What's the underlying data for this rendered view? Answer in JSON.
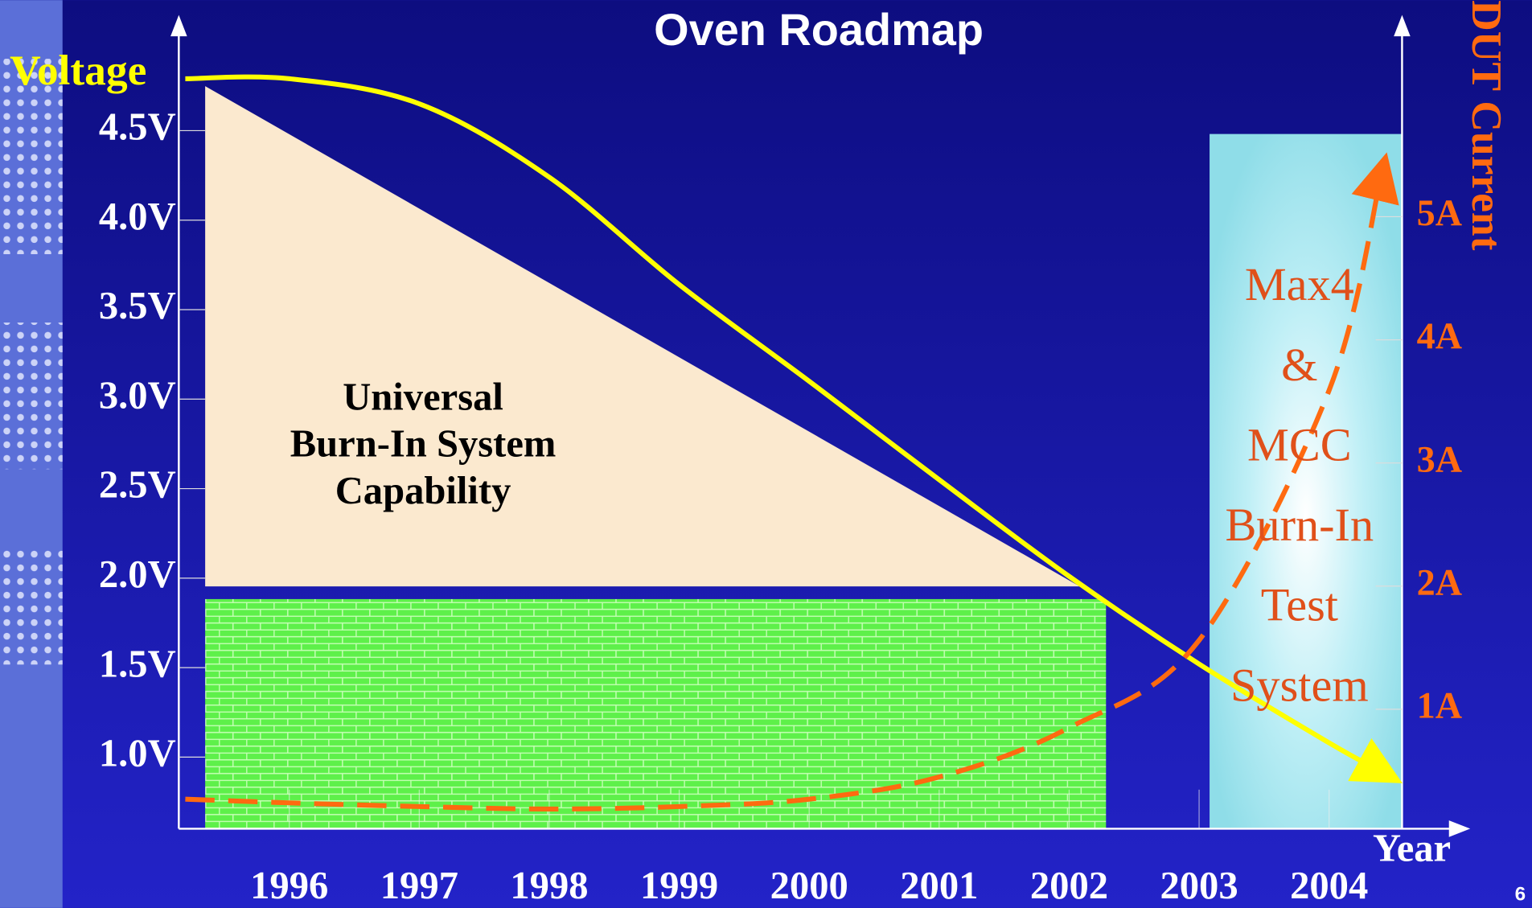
{
  "chart_data": {
    "type": "line",
    "title": "Oven Roadmap",
    "y_label": "Voltage",
    "y2_label": "DUT Current",
    "x_label": "Year",
    "x": [
      1995.2,
      1996,
      1997,
      1998,
      1999,
      2000,
      2001,
      2002,
      2003,
      2004,
      2004.4
    ],
    "xlim": [
      1995.15,
      2005.05
    ],
    "xticks": [
      1996,
      1997,
      1998,
      1999,
      2000,
      2001,
      2002,
      2003,
      2004
    ],
    "ylim": [
      0.6,
      5.12
    ],
    "yticks": [
      {
        "value": 1.0,
        "label": "1.0V"
      },
      {
        "value": 1.5,
        "label": "1.5V"
      },
      {
        "value": 2.0,
        "label": "2.0V"
      },
      {
        "value": 2.5,
        "label": "2.5V"
      },
      {
        "value": 3.0,
        "label": "3.0V"
      },
      {
        "value": 3.5,
        "label": "3.5V"
      },
      {
        "value": 4.0,
        "label": "4.0V"
      },
      {
        "value": 4.5,
        "label": "4.5V"
      }
    ],
    "y2lim": [
      0.03,
      6.6
    ],
    "y2ticks": [
      {
        "value": 1,
        "label": "1A"
      },
      {
        "value": 2,
        "label": "2A"
      },
      {
        "value": 3,
        "label": "3A"
      },
      {
        "value": 4,
        "label": "4A"
      },
      {
        "value": 5,
        "label": "5A"
      }
    ],
    "series": [
      {
        "name": "Voltage",
        "color": "#ffff00",
        "values": [
          4.79,
          4.79,
          4.65,
          4.24,
          3.64,
          3.1,
          2.55,
          2.01,
          1.52,
          1.08,
          0.92
        ]
      },
      {
        "name": "DUT Current",
        "color": "#ff6a10",
        "axis": "y2",
        "dashed": true,
        "values": [
          0.27,
          0.24,
          0.21,
          0.19,
          0.21,
          0.27,
          0.45,
          0.85,
          1.56,
          3.59,
          5.33
        ]
      }
    ],
    "annotations": [
      [
        "Universal",
        "Burn-In System",
        "Capability"
      ],
      [
        "Max4",
        "&",
        "MCC",
        "Burn-In",
        "Test",
        "System"
      ]
    ]
  },
  "page_number": "6"
}
